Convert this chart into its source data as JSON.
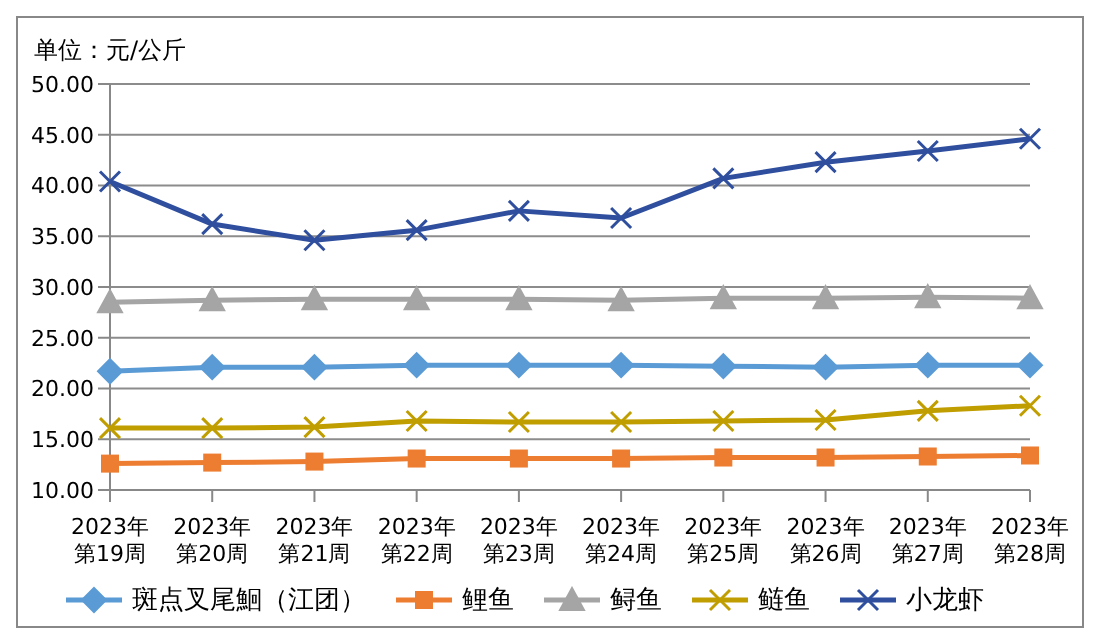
{
  "chart_data": {
    "type": "line",
    "title": "单位：元/公斤",
    "categories": [
      "2023年第19周",
      "2023年第20周",
      "2023年第21周",
      "2023年第22周",
      "2023年第23周",
      "2023年第24周",
      "2023年第25周",
      "2023年第26周",
      "2023年第27周",
      "2023年第28周"
    ],
    "series": [
      {
        "name": "斑点叉尾鮰（江团）",
        "color": "#5b9bd5",
        "marker": "diamond",
        "values": [
          21.7,
          22.1,
          22.1,
          22.3,
          22.3,
          22.3,
          22.2,
          22.1,
          22.3,
          22.3
        ]
      },
      {
        "name": "鲤鱼",
        "color": "#ed7d31",
        "marker": "square",
        "values": [
          12.6,
          12.7,
          12.8,
          13.1,
          13.1,
          13.1,
          13.2,
          13.2,
          13.3,
          13.4
        ]
      },
      {
        "name": "鲟鱼",
        "color": "#a5a5a5",
        "marker": "triangle",
        "values": [
          28.5,
          28.7,
          28.8,
          28.8,
          28.8,
          28.7,
          28.9,
          28.9,
          29.0,
          28.9
        ]
      },
      {
        "name": "鲢鱼",
        "color": "#c09e00",
        "marker": "cross",
        "values": [
          16.1,
          16.1,
          16.2,
          16.8,
          16.7,
          16.7,
          16.8,
          16.9,
          17.8,
          18.3
        ]
      },
      {
        "name": "小龙虾",
        "color": "#2f4f9e",
        "marker": "cross",
        "values": [
          40.4,
          36.2,
          34.6,
          35.6,
          37.5,
          36.8,
          40.7,
          42.3,
          43.4,
          44.6
        ]
      }
    ],
    "ylim": [
      10,
      50
    ],
    "yticks": [
      {
        "value": 10,
        "label": "10.00"
      },
      {
        "value": 15,
        "label": "15.00"
      },
      {
        "value": 20,
        "label": "20.00"
      },
      {
        "value": 25,
        "label": "25.00"
      },
      {
        "value": 30,
        "label": "30.00"
      },
      {
        "value": 35,
        "label": "35.00"
      },
      {
        "value": 40,
        "label": "40.00"
      },
      {
        "value": 45,
        "label": "45.00"
      },
      {
        "value": 50,
        "label": "50.00"
      }
    ],
    "grid": "y",
    "legend": "bottom",
    "line_style": "solid"
  }
}
